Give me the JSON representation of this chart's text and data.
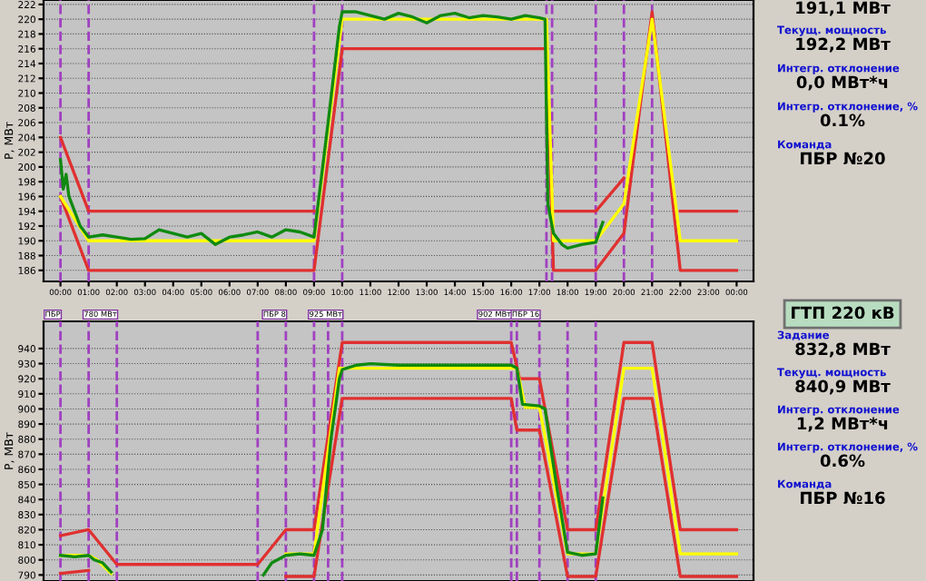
{
  "chart_data": [
    {
      "type": "line",
      "ylabel": "P, МВт",
      "xlim": [
        -0.6,
        24.6
      ],
      "ylim": [
        184.5,
        222.6
      ],
      "xticks": [
        {
          "value": 0,
          "label": "00:00"
        },
        {
          "value": 1,
          "label": "01:00"
        },
        {
          "value": 2,
          "label": "02:00"
        },
        {
          "value": 3,
          "label": "03:00"
        },
        {
          "value": 4,
          "label": "04:00"
        },
        {
          "value": 5,
          "label": "05:00"
        },
        {
          "value": 6,
          "label": "06:00"
        },
        {
          "value": 7,
          "label": "07:00"
        },
        {
          "value": 8,
          "label": "08:00"
        },
        {
          "value": 9,
          "label": "09:00"
        },
        {
          "value": 10,
          "label": "10:00"
        },
        {
          "value": 11,
          "label": "11:00"
        },
        {
          "value": 12,
          "label": "12:00"
        },
        {
          "value": 13,
          "label": "13:00"
        },
        {
          "value": 14,
          "label": "14:00"
        },
        {
          "value": 15,
          "label": "15:00"
        },
        {
          "value": 16,
          "label": "16:00"
        },
        {
          "value": 17,
          "label": "17:00"
        },
        {
          "value": 18,
          "label": "18:00"
        },
        {
          "value": 19,
          "label": "19:00"
        },
        {
          "value": 20,
          "label": "20:00"
        },
        {
          "value": 21,
          "label": "21:00"
        },
        {
          "value": 22,
          "label": "22:00"
        },
        {
          "value": 23,
          "label": "23:00"
        },
        {
          "value": 24,
          "label": "00:00"
        }
      ],
      "yticks": [
        186,
        188,
        190,
        192,
        194,
        196,
        198,
        200,
        202,
        204,
        206,
        208,
        210,
        212,
        214,
        216,
        218,
        220,
        222
      ],
      "grid": "y",
      "line_style": "solid",
      "ref_lines": [
        {
          "axis": "x",
          "value": 0,
          "color": "#a040c0",
          "line_style": "dashed"
        },
        {
          "axis": "x",
          "value": 1,
          "color": "#a040c0",
          "line_style": "dashed"
        },
        {
          "axis": "x",
          "value": 9,
          "color": "#a040c0",
          "line_style": "dashed"
        },
        {
          "axis": "x",
          "value": 10,
          "color": "#a040c0",
          "line_style": "dashed"
        },
        {
          "axis": "x",
          "value": 17.25,
          "color": "#a040c0",
          "line_style": "dashed"
        },
        {
          "axis": "x",
          "value": 17.45,
          "color": "#a040c0",
          "line_style": "dashed"
        },
        {
          "axis": "x",
          "value": 19,
          "color": "#a040c0",
          "line_style": "dashed"
        },
        {
          "axis": "x",
          "value": 20,
          "color": "#a040c0",
          "line_style": "dashed"
        },
        {
          "axis": "x",
          "value": 21,
          "color": "#a040c0",
          "line_style": "dashed"
        }
      ],
      "series": [
        {
          "color": "#e03030",
          "x": [
            0,
            1,
            9,
            10,
            17.5,
            19,
            20,
            21,
            22,
            24
          ],
          "values": [
            204,
            194,
            194,
            null,
            194,
            194,
            198.5,
            null,
            194,
            194
          ]
        },
        {
          "color": "#e03030",
          "x": [
            0,
            1,
            9,
            10,
            17.25,
            17.5,
            19,
            20,
            21,
            22,
            24
          ],
          "values": [
            196,
            186,
            186,
            216,
            216,
            186,
            186,
            191,
            221,
            186,
            186
          ]
        },
        {
          "color": "#ffff00",
          "x": [
            0,
            1,
            9,
            10,
            17.25,
            17.5,
            19,
            20,
            21,
            22,
            24
          ],
          "values": [
            196,
            190,
            190,
            220,
            220,
            190,
            190,
            195,
            220,
            190,
            190
          ]
        },
        {
          "color": "#108a10",
          "x": [
            0,
            0.1,
            0.2,
            0.3,
            0.5,
            0.7,
            1,
            1.5,
            2,
            2.5,
            3,
            3.5,
            4,
            4.5,
            5,
            5.5,
            6,
            6.5,
            7,
            7.5,
            8,
            8.5,
            9,
            9.5,
            9.9,
            10,
            10.5,
            11,
            11.5,
            12,
            12.5,
            13,
            13.5,
            14,
            14.5,
            15,
            15.5,
            16,
            16.5,
            17,
            17.2,
            17.3,
            17.5,
            17.8,
            18,
            18.5,
            19,
            19.25
          ],
          "values": [
            201,
            197,
            199,
            196,
            194,
            192,
            190.5,
            190.8,
            190.5,
            190.2,
            190.3,
            191.5,
            191,
            190.5,
            191,
            189.5,
            190.5,
            190.8,
            191.2,
            190.5,
            191.5,
            191.2,
            190.5,
            206,
            219,
            221,
            221,
            220.5,
            220,
            220.8,
            220.3,
            219.5,
            220.5,
            220.8,
            220.2,
            220.5,
            220.3,
            220,
            220.5,
            220.2,
            220,
            195,
            191,
            189.5,
            189,
            189.5,
            189.8,
            192.5
          ]
        }
      ]
    },
    {
      "type": "other",
      "annotations": [
        "191,1 МВт",
        "Текущ. мощность",
        "192,2 МВт",
        "Интегр. отклонение",
        "0,0 МВт*ч",
        "Интегр. отклонение, %",
        "0.1%",
        "Команда",
        "ПБР №20"
      ]
    },
    {
      "type": "line",
      "ylabel": "P, МВт",
      "xlim": [
        -0.6,
        24.6
      ],
      "ylim": [
        786,
        958
      ],
      "tick_labels": "y",
      "yticks": [
        790,
        800,
        810,
        820,
        830,
        840,
        850,
        860,
        870,
        880,
        890,
        900,
        910,
        920,
        930,
        940
      ],
      "grid": "y",
      "line_style": "solid",
      "ref_lines": [
        {
          "axis": "x",
          "value": 0,
          "color": "#a040c0",
          "line_style": "dashed",
          "label": "ПБР"
        },
        {
          "axis": "x",
          "value": 1,
          "color": "#a040c0",
          "line_style": "dashed"
        },
        {
          "axis": "x",
          "value": 2,
          "color": "#a040c0",
          "line_style": "dashed",
          "label": "780 МВт"
        },
        {
          "axis": "x",
          "value": 7,
          "color": "#a040c0",
          "line_style": "dashed"
        },
        {
          "axis": "x",
          "value": 8,
          "color": "#a040c0",
          "line_style": "dashed",
          "label": "ПБР 8"
        },
        {
          "axis": "x",
          "value": 9,
          "color": "#a040c0",
          "line_style": "dashed"
        },
        {
          "axis": "x",
          "value": 9.5,
          "color": "#a040c0",
          "line_style": "dashed"
        },
        {
          "axis": "x",
          "value": 10,
          "color": "#a040c0",
          "line_style": "dashed",
          "label": "925 МВт"
        },
        {
          "axis": "x",
          "value": 16,
          "color": "#a040c0",
          "line_style": "dashed",
          "label": "902 МВт"
        },
        {
          "axis": "x",
          "value": 16.2,
          "color": "#a040c0",
          "line_style": "dashed"
        },
        {
          "axis": "x",
          "value": 17,
          "color": "#a040c0",
          "line_style": "dashed",
          "label": "ПБР 16"
        },
        {
          "axis": "x",
          "value": 18,
          "color": "#a040c0",
          "line_style": "dashed"
        },
        {
          "axis": "x",
          "value": 19,
          "color": "#a040c0",
          "line_style": "dashed"
        }
      ],
      "series": [
        {
          "color": "#e03030",
          "x": [
            0,
            1,
            2,
            7,
            8,
            9,
            10,
            16,
            16.3,
            17,
            18,
            19,
            20,
            21,
            22,
            24
          ],
          "values": [
            816,
            820,
            797,
            797,
            820,
            820,
            944,
            944,
            920,
            920,
            820,
            820,
            944,
            944,
            820,
            820
          ]
        },
        {
          "color": "#e03030",
          "x": [
            0,
            1,
            1.3,
            8,
            9,
            10,
            16,
            16.2,
            17,
            18,
            19,
            20,
            21,
            22,
            24
          ],
          "values": [
            791,
            793,
            null,
            789,
            789,
            907,
            907,
            886,
            886,
            789,
            789,
            907,
            907,
            789,
            789
          ]
        },
        {
          "color": "#ffff00",
          "x": [
            0,
            1,
            1.3,
            1.8,
            2,
            7.2,
            8,
            9,
            9.9,
            16.2,
            16.5,
            17,
            18,
            19,
            20,
            21,
            22,
            24
          ],
          "values": [
            803,
            803,
            800,
            791,
            null,
            null,
            804,
            804,
            927,
            927,
            901,
            901,
            804,
            804,
            927,
            927,
            804,
            804
          ]
        },
        {
          "color": "#108a10",
          "x": [
            0,
            0.5,
            1,
            1.2,
            1.5,
            1.8,
            2,
            7.2,
            7.5,
            8,
            8.5,
            9,
            9.3,
            9.6,
            9.9,
            10,
            10.5,
            11,
            12,
            13,
            14,
            15,
            16,
            16.2,
            16.4,
            17,
            17.2,
            17.6,
            18,
            18.5,
            19,
            19.25
          ],
          "values": [
            803,
            802,
            803,
            800,
            798,
            792,
            null,
            790,
            798,
            803,
            804,
            803,
            820,
            880,
            920,
            926,
            929,
            930,
            929,
            929,
            929,
            929,
            929,
            927,
            903,
            902,
            900,
            850,
            805,
            803,
            804,
            841
          ]
        }
      ]
    },
    {
      "type": "other",
      "title": "ГТП 220 кВ",
      "annotations": [
        "Задание",
        "832,8 МВт",
        "Текущ. мощность",
        "840,9 МВт",
        "Интегр. отклонение",
        "1,2 МВт*ч",
        "Интегр. отклонение, %",
        "0.6%",
        "Команда",
        "ПБР №16"
      ]
    }
  ]
}
